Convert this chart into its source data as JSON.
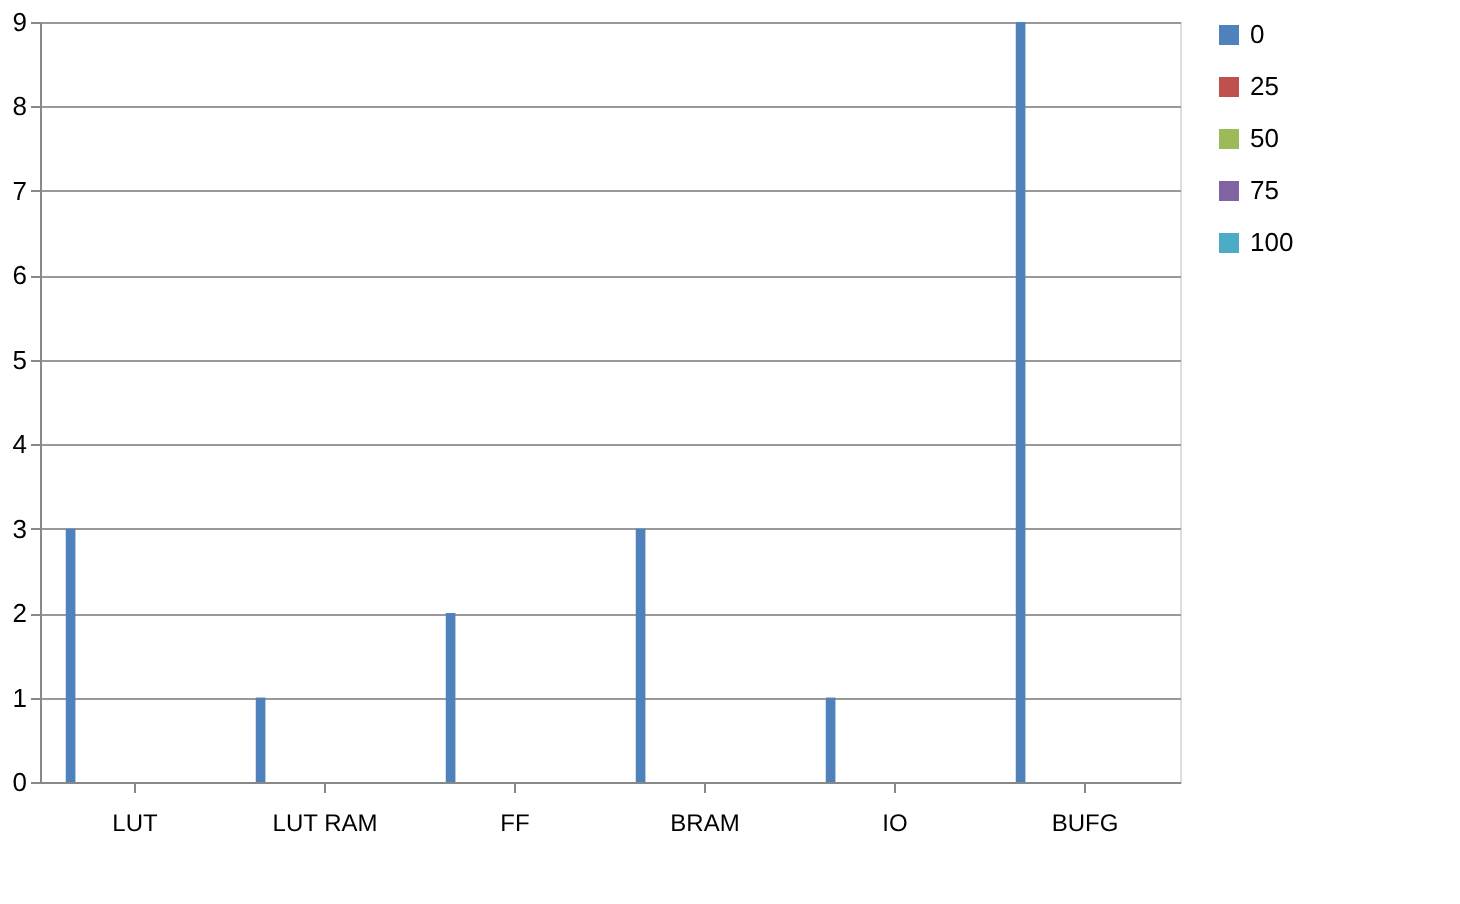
{
  "chart_data": {
    "type": "bar",
    "categories": [
      "LUT",
      "LUT RAM",
      "FF",
      "BRAM",
      "IO",
      "BUFG"
    ],
    "series": [
      {
        "name": "0",
        "color": "#4f81bd",
        "values": [
          3,
          1,
          2,
          3,
          1,
          9
        ]
      },
      {
        "name": "25",
        "color": "#c0504d",
        "values": [
          0,
          0,
          0,
          0,
          0,
          0
        ]
      },
      {
        "name": "50",
        "color": "#9bbb59",
        "values": [
          0,
          0,
          0,
          0,
          0,
          0
        ]
      },
      {
        "name": "75",
        "color": "#8064a2",
        "values": [
          0,
          0,
          0,
          0,
          0,
          0
        ]
      },
      {
        "name": "100",
        "color": "#4bacc6",
        "values": [
          0,
          0,
          0,
          0,
          0,
          0
        ]
      }
    ],
    "ylim": [
      0,
      9
    ],
    "yticks": [
      0,
      1,
      2,
      3,
      4,
      5,
      6,
      7,
      8,
      9
    ],
    "grid": "y",
    "legend": "right"
  }
}
